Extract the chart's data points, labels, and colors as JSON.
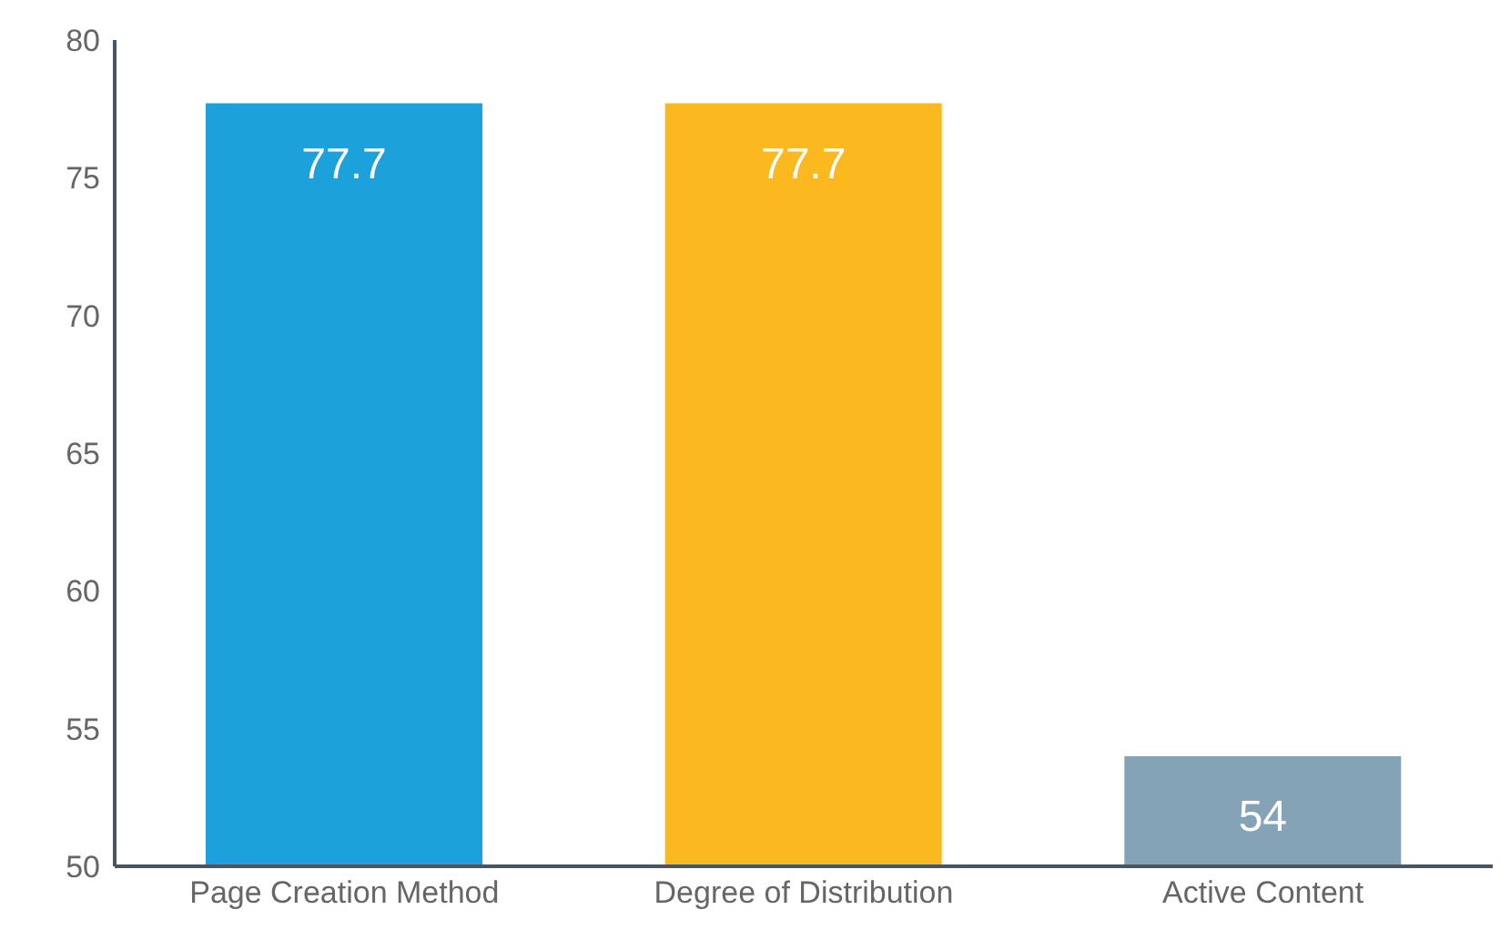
{
  "chart_data": {
    "type": "bar",
    "categories": [
      "Page Creation Method",
      "Degree of Distribution",
      "Active Content"
    ],
    "values": [
      77.7,
      77.7,
      54
    ],
    "colors": [
      "#1da1db",
      "#fbb91f",
      "#84a3b6"
    ],
    "ylim": [
      50,
      80
    ],
    "yticks": [
      50,
      55,
      60,
      65,
      70,
      75,
      80
    ],
    "data_labels": true
  }
}
